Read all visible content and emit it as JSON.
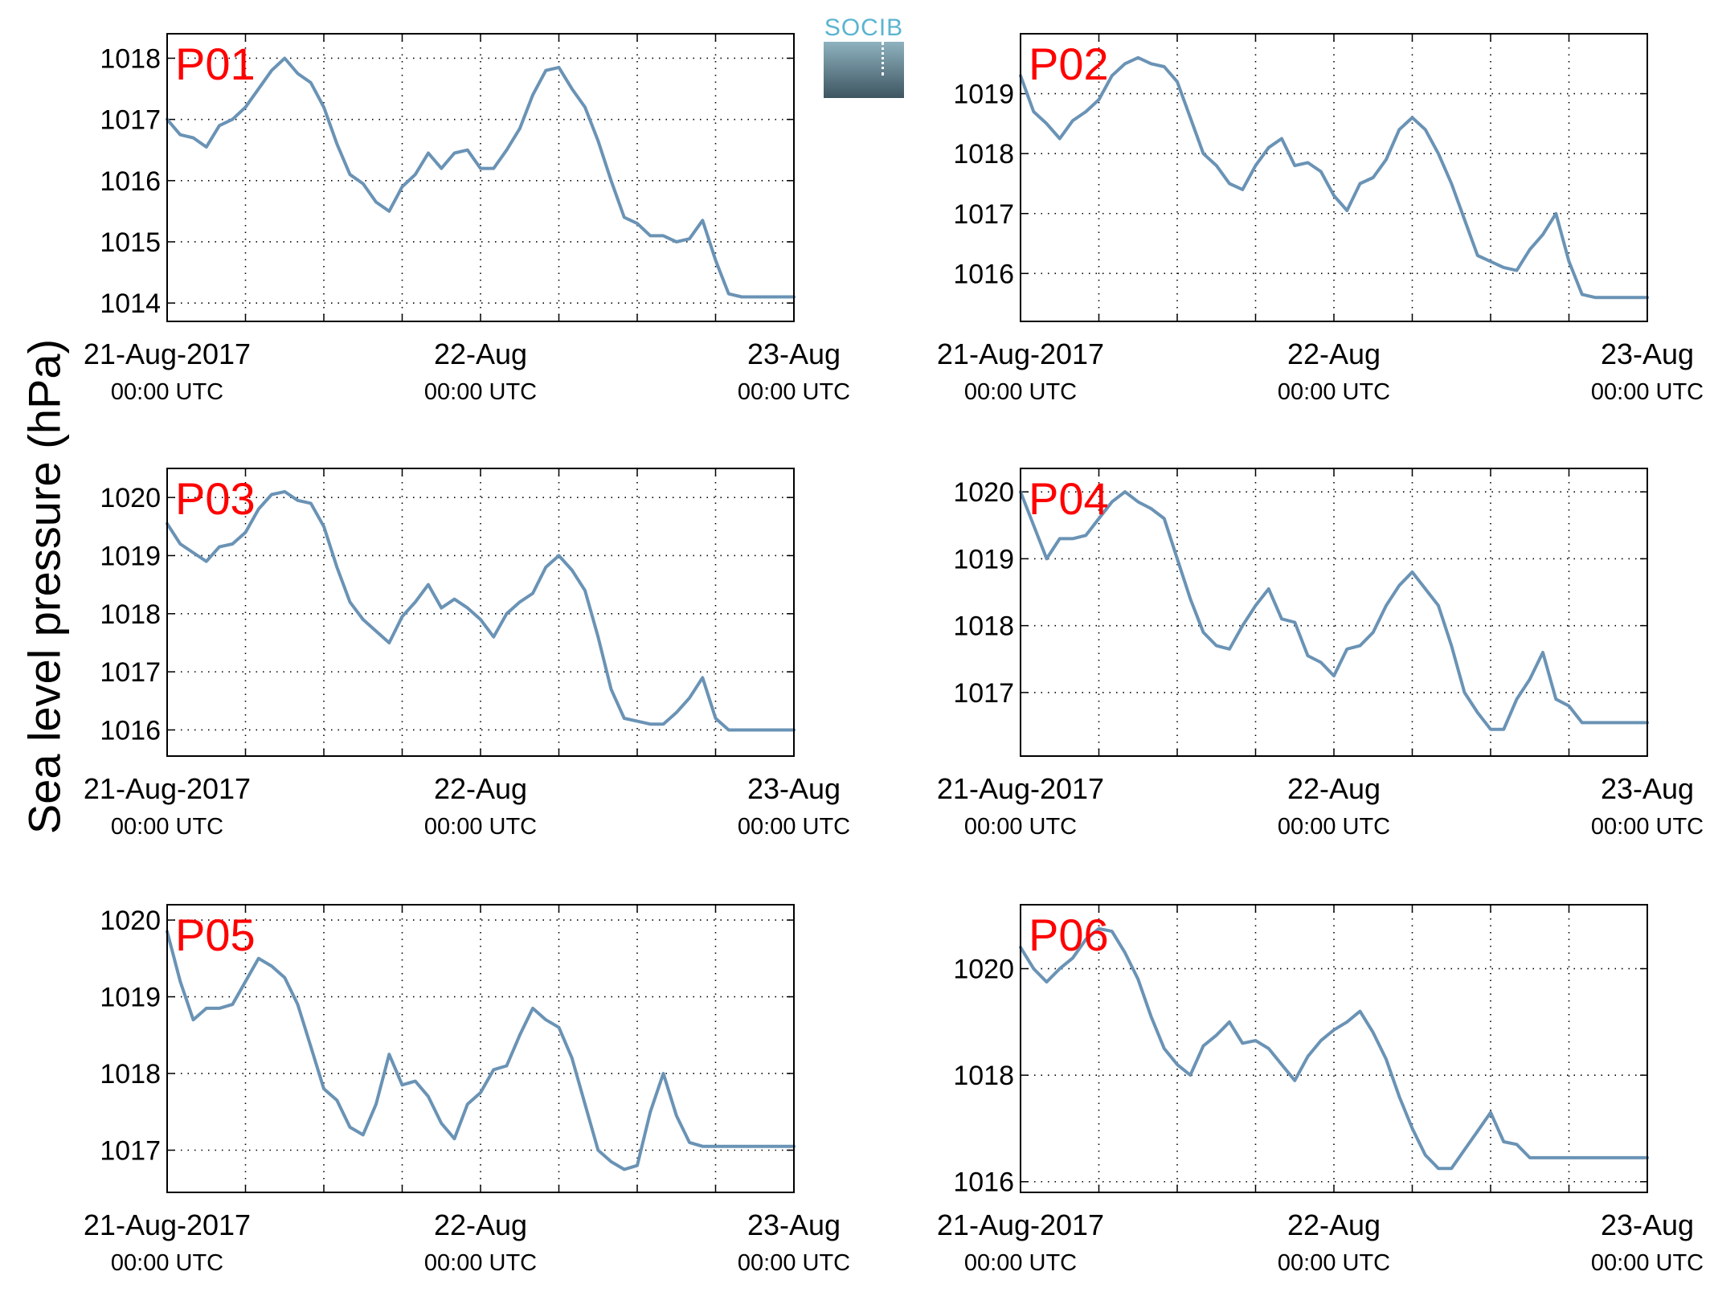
{
  "figure": {
    "ylabel": "Sea level pressure (hPa)",
    "logo_text": "SOCIB",
    "line_color": "#6a93b5",
    "panel_label_color": "#ff0000"
  },
  "chart_data": [
    {
      "type": "line",
      "label": "P01",
      "ylim": [
        1013.7,
        1018.4
      ],
      "yticks": [
        1014,
        1015,
        1016,
        1017,
        1018
      ],
      "xticks": [
        "21-Aug-2017",
        "22-Aug",
        "23-Aug"
      ],
      "xtick_sub": [
        "00:00 UTC",
        "00:00 UTC",
        "00:00 UTC"
      ],
      "x_hours": [
        0,
        1,
        2,
        3,
        4,
        5,
        6,
        7,
        8,
        9,
        10,
        11,
        12,
        13,
        14,
        15,
        16,
        17,
        18,
        19,
        20,
        21,
        22,
        23,
        24,
        25,
        26,
        27,
        28,
        29,
        30,
        31,
        32,
        33,
        34,
        35,
        36,
        37,
        38,
        39,
        40,
        41,
        42,
        43,
        44,
        45,
        46,
        47,
        48
      ],
      "values": [
        1017.0,
        1016.75,
        1016.7,
        1016.55,
        1016.9,
        1017.0,
        1017.2,
        1017.5,
        1017.8,
        1018.0,
        1017.75,
        1017.6,
        1017.2,
        1016.6,
        1016.1,
        1015.95,
        1015.65,
        1015.5,
        1015.9,
        1016.1,
        1016.45,
        1016.2,
        1016.45,
        1016.5,
        1016.2,
        1016.2,
        1016.5,
        1016.85,
        1017.4,
        1017.8,
        1017.85,
        1017.5,
        1017.2,
        1016.65,
        1016.0,
        1015.4,
        1015.3,
        1015.1,
        1015.1,
        1015.0,
        1015.05,
        1015.35,
        1014.7,
        1014.15,
        1014.1,
        1014.1,
        1014.1,
        1014.1,
        1014.1
      ],
      "grid": true
    },
    {
      "type": "line",
      "label": "P02",
      "ylim": [
        1015.2,
        1020.0
      ],
      "yticks": [
        1016,
        1017,
        1018,
        1019
      ],
      "xticks": [
        "21-Aug-2017",
        "22-Aug",
        "23-Aug"
      ],
      "xtick_sub": [
        "00:00 UTC",
        "00:00 UTC",
        "00:00 UTC"
      ],
      "x_hours": [
        0,
        1,
        2,
        3,
        4,
        5,
        6,
        7,
        8,
        9,
        10,
        11,
        12,
        13,
        14,
        15,
        16,
        17,
        18,
        19,
        20,
        21,
        22,
        23,
        24,
        25,
        26,
        27,
        28,
        29,
        30,
        31,
        32,
        33,
        34,
        35,
        36,
        37,
        38,
        39,
        40,
        41,
        42,
        43,
        44,
        45,
        46,
        47,
        48
      ],
      "values": [
        1019.3,
        1018.7,
        1018.5,
        1018.25,
        1018.55,
        1018.7,
        1018.9,
        1019.3,
        1019.5,
        1019.6,
        1019.5,
        1019.45,
        1019.2,
        1018.6,
        1018.0,
        1017.8,
        1017.5,
        1017.4,
        1017.8,
        1018.1,
        1018.25,
        1017.8,
        1017.85,
        1017.7,
        1017.3,
        1017.05,
        1017.5,
        1017.6,
        1017.9,
        1018.4,
        1018.6,
        1018.4,
        1018.0,
        1017.5,
        1016.9,
        1016.3,
        1016.2,
        1016.1,
        1016.05,
        1016.4,
        1016.65,
        1017.0,
        1016.2,
        1015.65,
        1015.6,
        1015.6,
        1015.6,
        1015.6,
        1015.6
      ],
      "grid": true
    },
    {
      "type": "line",
      "label": "P03",
      "ylim": [
        1015.55,
        1020.5
      ],
      "yticks": [
        1016,
        1017,
        1018,
        1019,
        1020
      ],
      "xticks": [
        "21-Aug-2017",
        "22-Aug",
        "23-Aug"
      ],
      "xtick_sub": [
        "00:00 UTC",
        "00:00 UTC",
        "00:00 UTC"
      ],
      "x_hours": [
        0,
        1,
        2,
        3,
        4,
        5,
        6,
        7,
        8,
        9,
        10,
        11,
        12,
        13,
        14,
        15,
        16,
        17,
        18,
        19,
        20,
        21,
        22,
        23,
        24,
        25,
        26,
        27,
        28,
        29,
        30,
        31,
        32,
        33,
        34,
        35,
        36,
        37,
        38,
        39,
        40,
        41,
        42,
        43,
        44,
        45,
        46,
        47,
        48
      ],
      "values": [
        1019.55,
        1019.2,
        1019.05,
        1018.9,
        1019.15,
        1019.2,
        1019.4,
        1019.8,
        1020.05,
        1020.1,
        1019.95,
        1019.9,
        1019.5,
        1018.8,
        1018.2,
        1017.9,
        1017.7,
        1017.5,
        1017.95,
        1018.2,
        1018.5,
        1018.1,
        1018.25,
        1018.1,
        1017.9,
        1017.6,
        1018.0,
        1018.2,
        1018.35,
        1018.8,
        1019.0,
        1018.75,
        1018.4,
        1017.6,
        1016.7,
        1016.2,
        1016.15,
        1016.1,
        1016.1,
        1016.3,
        1016.55,
        1016.9,
        1016.2,
        1016.0,
        1016.0,
        1016.0,
        1016.0,
        1016.0,
        1016.0
      ],
      "grid": true
    },
    {
      "type": "line",
      "label": "P04",
      "ylim": [
        1016.05,
        1020.35
      ],
      "yticks": [
        1017,
        1018,
        1019,
        1020
      ],
      "xticks": [
        "21-Aug-2017",
        "22-Aug",
        "23-Aug"
      ],
      "xtick_sub": [
        "00:00 UTC",
        "00:00 UTC",
        "00:00 UTC"
      ],
      "x_hours": [
        0,
        1,
        2,
        3,
        4,
        5,
        6,
        7,
        8,
        9,
        10,
        11,
        12,
        13,
        14,
        15,
        16,
        17,
        18,
        19,
        20,
        21,
        22,
        23,
        24,
        25,
        26,
        27,
        28,
        29,
        30,
        31,
        32,
        33,
        34,
        35,
        36,
        37,
        38,
        39,
        40,
        41,
        42,
        43,
        44,
        45,
        46,
        47,
        48
      ],
      "values": [
        1020.0,
        1019.5,
        1019.0,
        1019.3,
        1019.3,
        1019.35,
        1019.6,
        1019.85,
        1020.0,
        1019.85,
        1019.75,
        1019.6,
        1019.0,
        1018.4,
        1017.9,
        1017.7,
        1017.65,
        1018.0,
        1018.3,
        1018.55,
        1018.1,
        1018.05,
        1017.55,
        1017.45,
        1017.25,
        1017.65,
        1017.7,
        1017.9,
        1018.3,
        1018.6,
        1018.8,
        1018.55,
        1018.3,
        1017.7,
        1017.0,
        1016.7,
        1016.45,
        1016.45,
        1016.9,
        1017.2,
        1017.6,
        1016.9,
        1016.8,
        1016.55,
        1016.55,
        1016.55,
        1016.55,
        1016.55,
        1016.55
      ],
      "grid": true
    },
    {
      "type": "line",
      "label": "P05",
      "ylim": [
        1016.45,
        1020.2
      ],
      "yticks": [
        1017,
        1018,
        1019,
        1020
      ],
      "xticks": [
        "21-Aug-2017",
        "22-Aug",
        "23-Aug"
      ],
      "xtick_sub": [
        "00:00 UTC",
        "00:00 UTC",
        "00:00 UTC"
      ],
      "x_hours": [
        0,
        1,
        2,
        3,
        4,
        5,
        6,
        7,
        8,
        9,
        10,
        11,
        12,
        13,
        14,
        15,
        16,
        17,
        18,
        19,
        20,
        21,
        22,
        23,
        24,
        25,
        26,
        27,
        28,
        29,
        30,
        31,
        32,
        33,
        34,
        35,
        36,
        37,
        38,
        39,
        40,
        41,
        42,
        43,
        44,
        45,
        46,
        47,
        48
      ],
      "values": [
        1019.85,
        1019.2,
        1018.7,
        1018.85,
        1018.85,
        1018.9,
        1019.2,
        1019.5,
        1019.4,
        1019.25,
        1018.9,
        1018.35,
        1017.8,
        1017.65,
        1017.3,
        1017.2,
        1017.6,
        1018.25,
        1017.85,
        1017.9,
        1017.7,
        1017.35,
        1017.15,
        1017.6,
        1017.75,
        1018.05,
        1018.1,
        1018.5,
        1018.85,
        1018.7,
        1018.6,
        1018.2,
        1017.6,
        1017.0,
        1016.85,
        1016.75,
        1016.8,
        1017.5,
        1018.0,
        1017.45,
        1017.1,
        1017.05,
        1017.05,
        1017.05,
        1017.05,
        1017.05,
        1017.05,
        1017.05,
        1017.05
      ],
      "grid": true
    },
    {
      "type": "line",
      "label": "P06",
      "ylim": [
        1015.8,
        1021.2
      ],
      "yticks": [
        1016,
        1018,
        1020
      ],
      "xticks": [
        "21-Aug-2017",
        "22-Aug",
        "23-Aug"
      ],
      "xtick_sub": [
        "00:00 UTC",
        "00:00 UTC",
        "00:00 UTC"
      ],
      "x_hours": [
        0,
        1,
        2,
        3,
        4,
        5,
        6,
        7,
        8,
        9,
        10,
        11,
        12,
        13,
        14,
        15,
        16,
        17,
        18,
        19,
        20,
        21,
        22,
        23,
        24,
        25,
        26,
        27,
        28,
        29,
        30,
        31,
        32,
        33,
        34,
        35,
        36,
        37,
        38,
        39,
        40,
        41,
        42,
        43,
        44,
        45,
        46,
        47,
        48
      ],
      "values": [
        1020.4,
        1020.0,
        1019.75,
        1020.0,
        1020.2,
        1020.55,
        1020.75,
        1020.7,
        1020.3,
        1019.8,
        1019.1,
        1018.5,
        1018.2,
        1018.0,
        1018.55,
        1018.75,
        1019.0,
        1018.6,
        1018.65,
        1018.5,
        1018.2,
        1017.9,
        1018.35,
        1018.65,
        1018.85,
        1019.0,
        1019.2,
        1018.8,
        1018.3,
        1017.6,
        1017.0,
        1016.5,
        1016.25,
        1016.25,
        1016.6,
        1016.95,
        1017.3,
        1016.75,
        1016.7,
        1016.45,
        1016.45,
        1016.45,
        1016.45,
        1016.45,
        1016.45,
        1016.45,
        1016.45,
        1016.45,
        1016.45
      ],
      "grid": true
    }
  ]
}
